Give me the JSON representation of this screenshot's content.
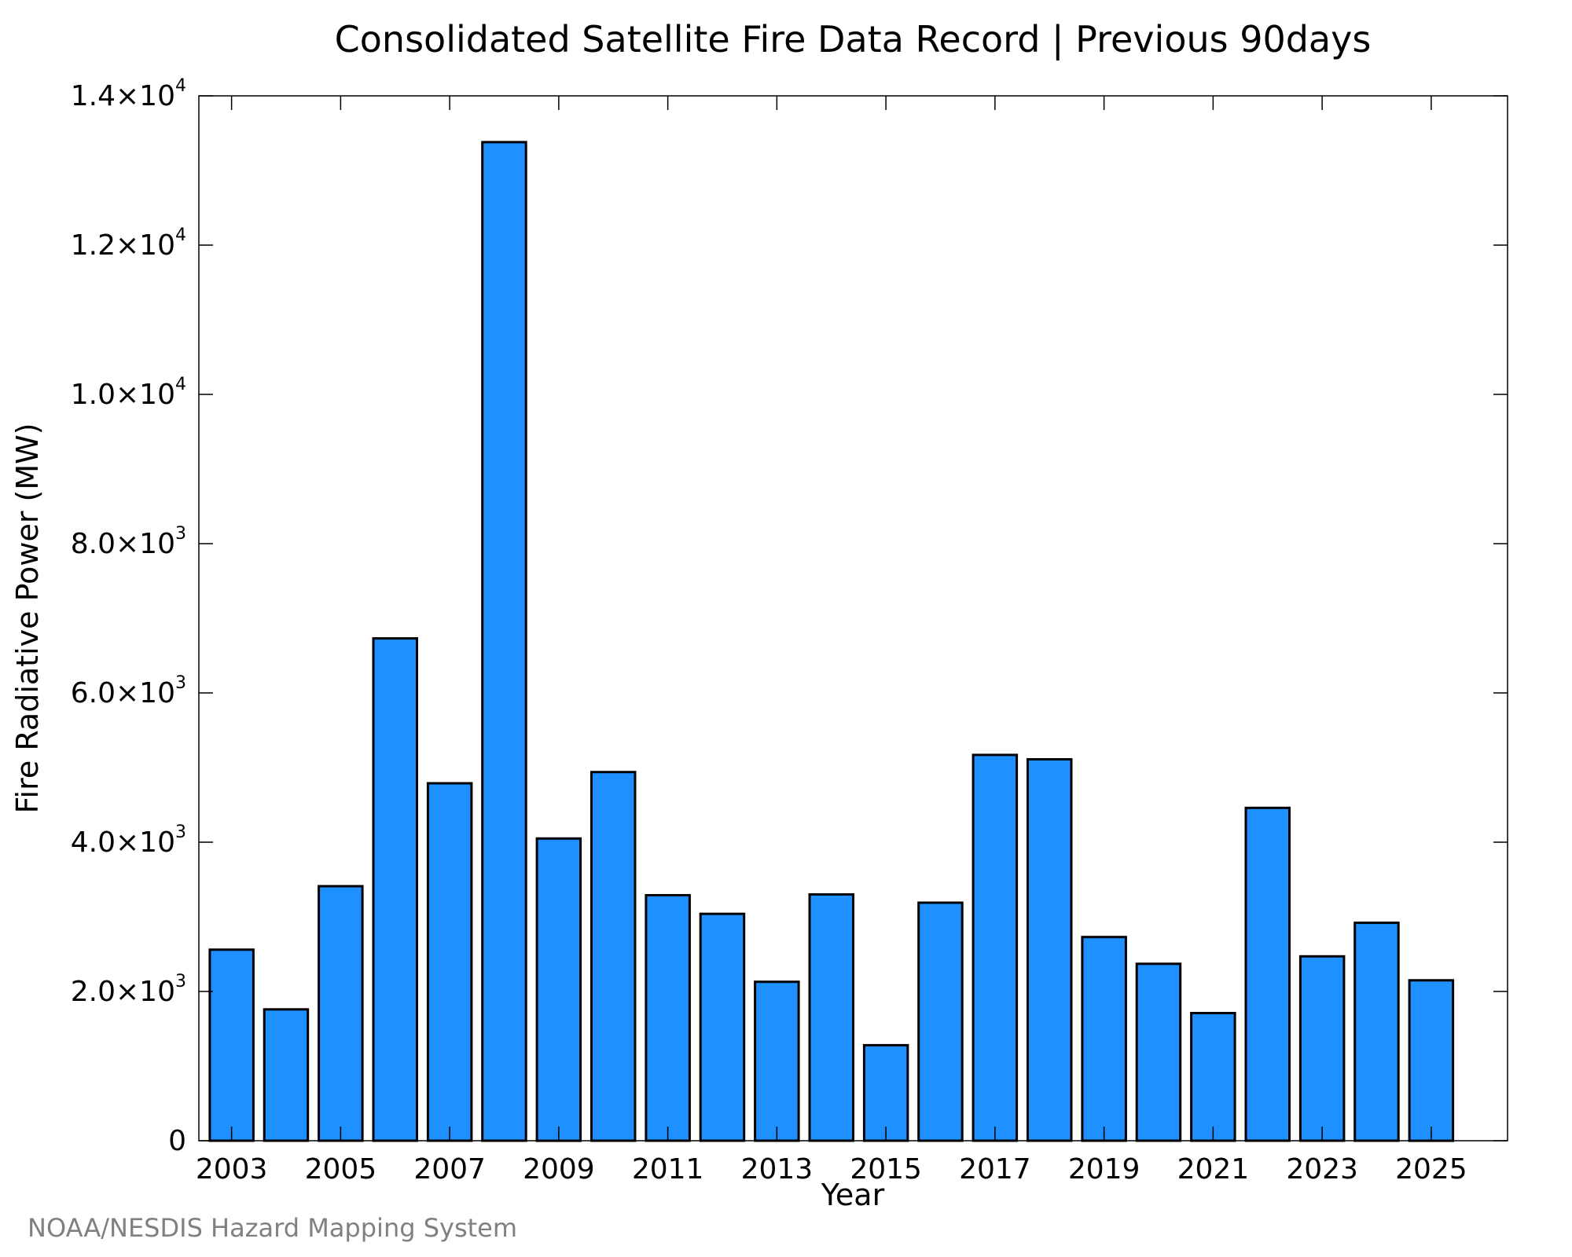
{
  "footer": "NOAA/NESDIS Hazard Mapping System",
  "chart_data": {
    "type": "bar",
    "title": "Consolidated Satellite Fire Data Record | Previous 90days",
    "xlabel": "Year",
    "ylabel": "Fire Radiative Power (MW)",
    "x": [
      2003,
      2004,
      2005,
      2006,
      2007,
      2008,
      2009,
      2010,
      2011,
      2012,
      2013,
      2014,
      2015,
      2016,
      2017,
      2018,
      2019,
      2020,
      2021,
      2022,
      2023,
      2024,
      2025
    ],
    "values": [
      2560,
      1760,
      3410,
      6730,
      4790,
      13380,
      4050,
      4940,
      3290,
      3040,
      2130,
      3300,
      1280,
      3190,
      5170,
      5110,
      2730,
      2370,
      1710,
      4460,
      2470,
      2920,
      2150
    ],
    "xlim": [
      2002.4,
      2026.4
    ],
    "ylim": [
      0,
      14000
    ],
    "x_ticks": [
      2003,
      2005,
      2007,
      2009,
      2011,
      2013,
      2015,
      2017,
      2019,
      2021,
      2023,
      2025
    ],
    "x_tick_labels": [
      "2003",
      "2005",
      "2007",
      "2009",
      "2011",
      "2013",
      "2015",
      "2017",
      "2019",
      "2021",
      "2023",
      "2025"
    ],
    "y_ticks": [
      0,
      2000,
      4000,
      6000,
      8000,
      10000,
      12000,
      14000
    ],
    "y_tick_labels": [
      {
        "base": "0",
        "exp": ""
      },
      {
        "base": "2.0×10",
        "exp": "3"
      },
      {
        "base": "4.0×10",
        "exp": "3"
      },
      {
        "base": "6.0×10",
        "exp": "3"
      },
      {
        "base": "8.0×10",
        "exp": "3"
      },
      {
        "base": "1.0×10",
        "exp": "4"
      },
      {
        "base": "1.2×10",
        "exp": "4"
      },
      {
        "base": "1.4×10",
        "exp": "4"
      }
    ],
    "bar_color": "#1e90ff",
    "grid": false,
    "legend": "none"
  }
}
